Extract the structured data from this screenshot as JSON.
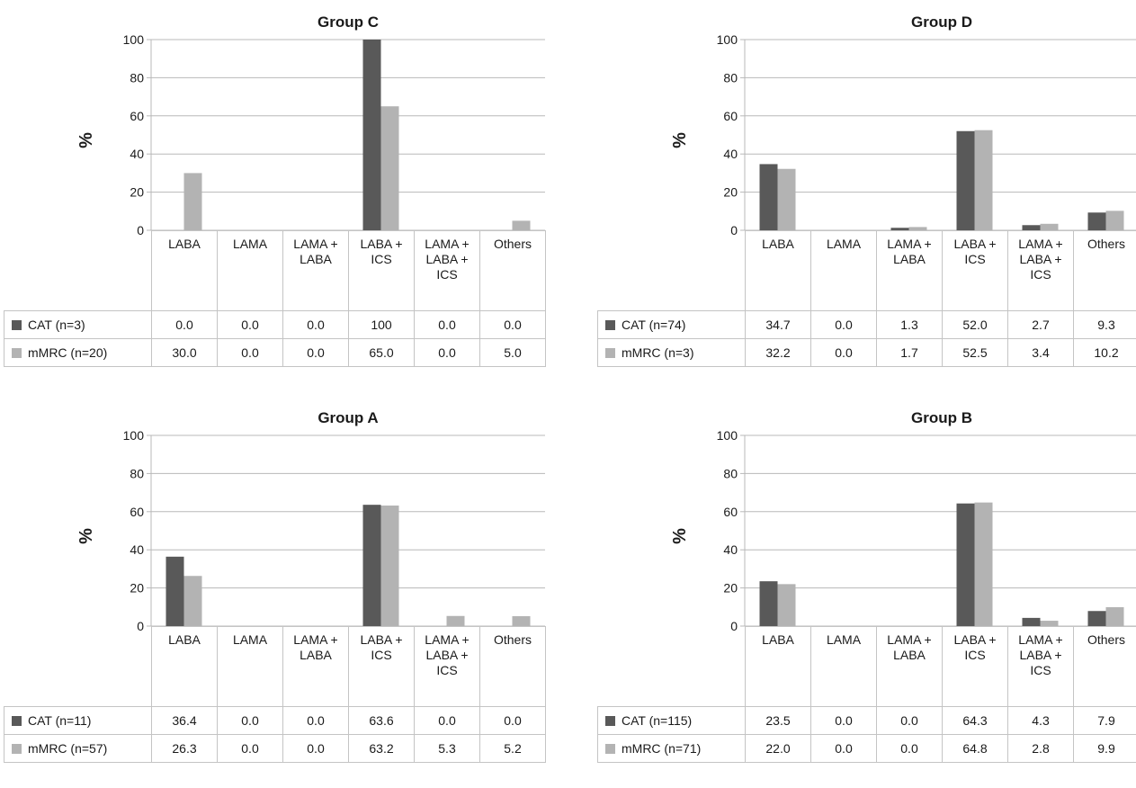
{
  "colors": {
    "cat": "#595959",
    "mmrc": "#b3b3b3",
    "grid": "#b8b8b8"
  },
  "chart_data": [
    {
      "type": "bar",
      "title": "Group C",
      "ylabel": "%",
      "ylim": [
        0,
        100
      ],
      "yticks": [
        "0",
        "20",
        "40",
        "60",
        "80",
        "100"
      ],
      "categories": [
        "LABA",
        "LAMA",
        "LAMA + LABA",
        "LABA + ICS",
        "LAMA + LABA + ICS",
        "Others"
      ],
      "series": [
        {
          "name": "CAT (n=3)",
          "values": [
            0.0,
            0.0,
            0.0,
            100,
            0.0,
            0.0
          ],
          "labels": [
            "0.0",
            "0.0",
            "0.0",
            "100",
            "0.0",
            "0.0"
          ]
        },
        {
          "name": "mMRC (n=20)",
          "values": [
            30.0,
            0.0,
            0.0,
            65.0,
            0.0,
            5.0
          ],
          "labels": [
            "30.0",
            "0.0",
            "0.0",
            "65.0",
            "0.0",
            "5.0"
          ]
        }
      ]
    },
    {
      "type": "bar",
      "title": "Group D",
      "ylabel": "%",
      "ylim": [
        0,
        100
      ],
      "yticks": [
        "0",
        "20",
        "40",
        "60",
        "80",
        "100"
      ],
      "categories": [
        "LABA",
        "LAMA",
        "LAMA + LABA",
        "LABA + ICS",
        "LAMA + LABA + ICS",
        "Others"
      ],
      "series": [
        {
          "name": "CAT (n=74)",
          "values": [
            34.7,
            0.0,
            1.3,
            52.0,
            2.7,
            9.3
          ],
          "labels": [
            "34.7",
            "0.0",
            "1.3",
            "52.0",
            "2.7",
            "9.3"
          ]
        },
        {
          "name": "mMRC (n=3)",
          "values": [
            32.2,
            0.0,
            1.7,
            52.5,
            3.4,
            10.2
          ],
          "labels": [
            "32.2",
            "0.0",
            "1.7",
            "52.5",
            "3.4",
            "10.2"
          ]
        }
      ]
    },
    {
      "type": "bar",
      "title": "Group A",
      "ylabel": "%",
      "ylim": [
        0,
        100
      ],
      "yticks": [
        "0",
        "20",
        "40",
        "60",
        "80",
        "100"
      ],
      "categories": [
        "LABA",
        "LAMA",
        "LAMA + LABA",
        "LABA + ICS",
        "LAMA + LABA + ICS",
        "Others"
      ],
      "series": [
        {
          "name": "CAT (n=11)",
          "values": [
            36.4,
            0.0,
            0.0,
            63.6,
            0.0,
            0.0
          ],
          "labels": [
            "36.4",
            "0.0",
            "0.0",
            "63.6",
            "0.0",
            "0.0"
          ]
        },
        {
          "name": "mMRC (n=57)",
          "values": [
            26.3,
            0.0,
            0.0,
            63.2,
            5.3,
            5.2
          ],
          "labels": [
            "26.3",
            "0.0",
            "0.0",
            "63.2",
            "5.3",
            "5.2"
          ]
        }
      ]
    },
    {
      "type": "bar",
      "title": "Group B",
      "ylabel": "%",
      "ylim": [
        0,
        100
      ],
      "yticks": [
        "0",
        "20",
        "40",
        "60",
        "80",
        "100"
      ],
      "categories": [
        "LABA",
        "LAMA",
        "LAMA + LABA",
        "LABA + ICS",
        "LAMA + LABA + ICS",
        "Others"
      ],
      "series": [
        {
          "name": "CAT (n=115)",
          "values": [
            23.5,
            0.0,
            0.0,
            64.3,
            4.3,
            7.9
          ],
          "labels": [
            "23.5",
            "0.0",
            "0.0",
            "64.3",
            "4.3",
            "7.9"
          ]
        },
        {
          "name": "mMRC (n=71)",
          "values": [
            22.0,
            0.0,
            0.0,
            64.8,
            2.8,
            9.9
          ],
          "labels": [
            "22.0",
            "0.0",
            "0.0",
            "64.8",
            "2.8",
            "9.9"
          ]
        }
      ]
    }
  ]
}
